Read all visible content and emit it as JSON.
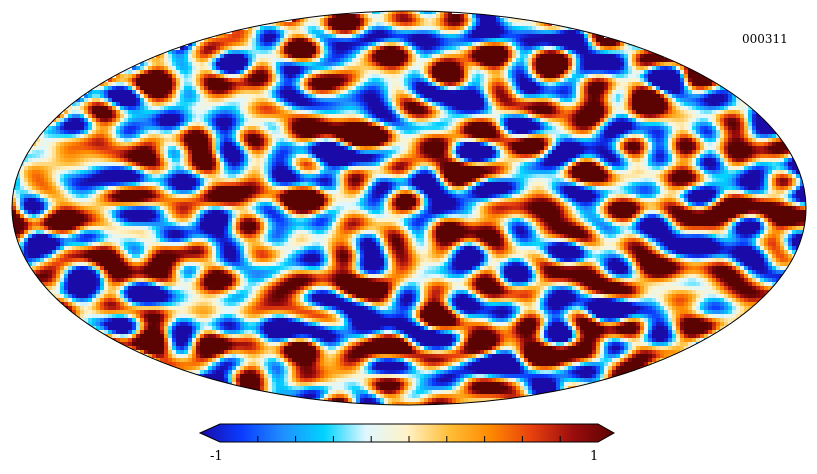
{
  "map": {
    "id_label": "000311",
    "projection": "mollweide",
    "field_description_visible": false
  },
  "colorbar": {
    "min_label": "-1",
    "max_label": "1",
    "min_value": -1,
    "max_value": 1,
    "tick_count": 10,
    "colormap": [
      "#1a0aa8",
      "#0a3cff",
      "#1f8fff",
      "#00d3ff",
      "#dff7ff",
      "#fff2c7",
      "#ffbf3a",
      "#ff8a00",
      "#e8400e",
      "#9c0d0d",
      "#5b0303"
    ],
    "outline_color": "#000000"
  }
}
